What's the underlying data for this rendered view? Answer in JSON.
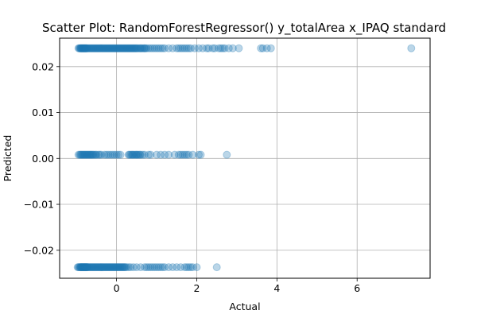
{
  "chart_data": {
    "type": "scatter",
    "title": "Scatter Plot: RandomForestRegressor() y_totalArea x_IPAQ standard",
    "xlabel": "Actual",
    "ylabel": "Predicted",
    "xlim": [
      -1.42,
      7.82
    ],
    "ylim": [
      -0.0261,
      0.0262
    ],
    "xticks": [
      0,
      2,
      4,
      6
    ],
    "xtick_labels": [
      "0",
      "2",
      "4",
      "6"
    ],
    "yticks": [
      -0.02,
      -0.01,
      0.0,
      0.01,
      0.02
    ],
    "ytick_labels": [
      "−0.02",
      "−0.01",
      "0.00",
      "0.01",
      "0.02"
    ],
    "grid": true,
    "marker_color": "#1f77b4",
    "marker_alpha": 0.3,
    "series": [
      {
        "y": 0.024,
        "x": [
          -0.95,
          -0.93,
          -0.91,
          -0.9,
          -0.89,
          -0.88,
          -0.87,
          -0.86,
          -0.85,
          -0.84,
          -0.83,
          -0.82,
          -0.81,
          -0.8,
          -0.79,
          -0.78,
          -0.77,
          -0.76,
          -0.75,
          -0.74,
          -0.72,
          -0.7,
          -0.68,
          -0.66,
          -0.64,
          -0.62,
          -0.6,
          -0.58,
          -0.56,
          -0.54,
          -0.52,
          -0.5,
          -0.48,
          -0.46,
          -0.44,
          -0.42,
          -0.4,
          -0.38,
          -0.36,
          -0.34,
          -0.32,
          -0.3,
          -0.28,
          -0.26,
          -0.24,
          -0.22,
          -0.2,
          -0.18,
          -0.16,
          -0.14,
          -0.12,
          -0.1,
          -0.08,
          -0.06,
          -0.04,
          -0.02,
          0.0,
          0.02,
          0.04,
          0.06,
          0.08,
          0.1,
          0.12,
          0.14,
          0.16,
          0.18,
          0.2,
          0.22,
          0.24,
          0.26,
          0.28,
          0.3,
          0.32,
          0.34,
          0.36,
          0.38,
          0.4,
          0.42,
          0.44,
          0.46,
          0.48,
          0.5,
          0.52,
          0.55,
          0.58,
          0.6,
          0.62,
          0.65,
          0.68,
          0.7,
          0.72,
          0.75,
          0.8,
          0.85,
          0.9,
          0.95,
          1.0,
          1.05,
          1.1,
          1.15,
          1.2,
          1.3,
          1.4,
          1.5,
          1.55,
          1.6,
          1.65,
          1.7,
          1.75,
          1.8,
          1.85,
          1.95,
          2.05,
          2.15,
          2.25,
          2.3,
          2.4,
          2.45,
          2.55,
          2.6,
          2.65,
          2.7,
          2.8,
          2.9,
          3.05,
          3.6,
          3.65,
          3.75,
          3.85,
          7.35
        ]
      },
      {
        "y": 0.0008,
        "x": [
          -0.95,
          -0.92,
          -0.9,
          -0.88,
          -0.86,
          -0.84,
          -0.82,
          -0.8,
          -0.78,
          -0.76,
          -0.74,
          -0.72,
          -0.7,
          -0.68,
          -0.66,
          -0.64,
          -0.62,
          -0.6,
          -0.58,
          -0.55,
          -0.52,
          -0.5,
          -0.45,
          -0.42,
          -0.38,
          -0.3,
          -0.25,
          -0.2,
          -0.15,
          -0.1,
          -0.05,
          0.0,
          0.05,
          0.1,
          0.3,
          0.32,
          0.35,
          0.38,
          0.4,
          0.42,
          0.45,
          0.48,
          0.5,
          0.52,
          0.55,
          0.58,
          0.6,
          0.65,
          0.7,
          0.8,
          0.85,
          1.0,
          1.1,
          1.2,
          1.3,
          1.45,
          1.55,
          1.6,
          1.65,
          1.7,
          1.75,
          1.8,
          1.9,
          2.05,
          2.1,
          2.75
        ]
      },
      {
        "y": -0.0237,
        "x": [
          -0.97,
          -0.95,
          -0.93,
          -0.91,
          -0.9,
          -0.89,
          -0.88,
          -0.87,
          -0.86,
          -0.85,
          -0.84,
          -0.83,
          -0.82,
          -0.81,
          -0.8,
          -0.79,
          -0.78,
          -0.77,
          -0.76,
          -0.75,
          -0.74,
          -0.73,
          -0.72,
          -0.7,
          -0.68,
          -0.66,
          -0.64,
          -0.62,
          -0.6,
          -0.58,
          -0.56,
          -0.54,
          -0.52,
          -0.5,
          -0.48,
          -0.46,
          -0.44,
          -0.42,
          -0.4,
          -0.38,
          -0.36,
          -0.34,
          -0.32,
          -0.3,
          -0.28,
          -0.26,
          -0.24,
          -0.22,
          -0.2,
          -0.18,
          -0.16,
          -0.14,
          -0.12,
          -0.1,
          -0.08,
          -0.06,
          -0.04,
          -0.02,
          0.0,
          0.02,
          0.04,
          0.06,
          0.08,
          0.1,
          0.12,
          0.14,
          0.16,
          0.18,
          0.2,
          0.22,
          0.25,
          0.3,
          0.35,
          0.42,
          0.5,
          0.6,
          0.7,
          0.75,
          0.8,
          0.85,
          0.9,
          0.95,
          1.0,
          1.05,
          1.1,
          1.15,
          1.2,
          1.3,
          1.4,
          1.5,
          1.6,
          1.7,
          1.75,
          1.8,
          1.85,
          1.9,
          2.0,
          2.5
        ]
      }
    ]
  }
}
